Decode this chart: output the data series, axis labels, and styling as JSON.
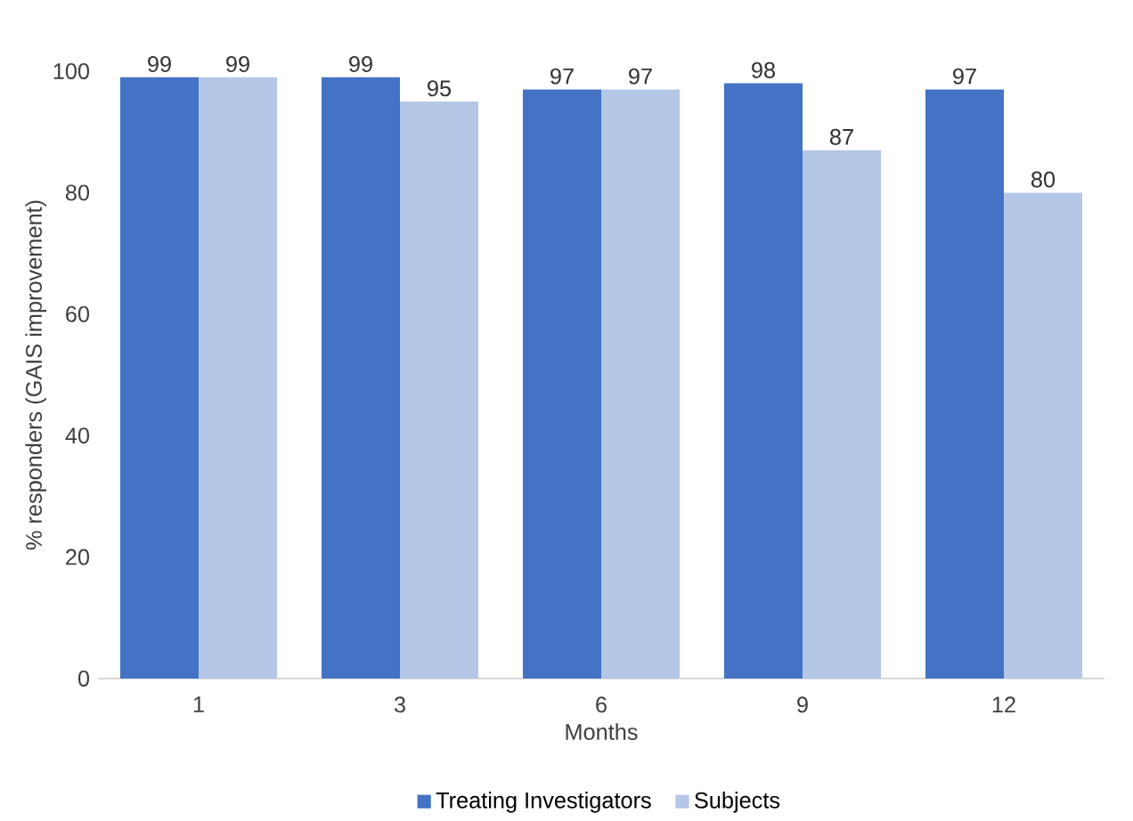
{
  "chart_data": {
    "type": "bar",
    "xlabel": "Months",
    "ylabel": "% responders (GAIS improvement)",
    "categories": [
      "1",
      "3",
      "6",
      "9",
      "12"
    ],
    "series": [
      {
        "name": "Treating Investigators",
        "color": "#4472c4",
        "values": [
          99,
          99,
          97,
          98,
          97
        ]
      },
      {
        "name": "Subjects",
        "color": "#b4c7e7",
        "values": [
          99,
          95,
          97,
          87,
          80
        ]
      }
    ],
    "ylim": [
      0,
      100
    ],
    "yticks": [
      0,
      20,
      40,
      60,
      80,
      100
    ],
    "data_labels": true,
    "legend": "bottom"
  }
}
